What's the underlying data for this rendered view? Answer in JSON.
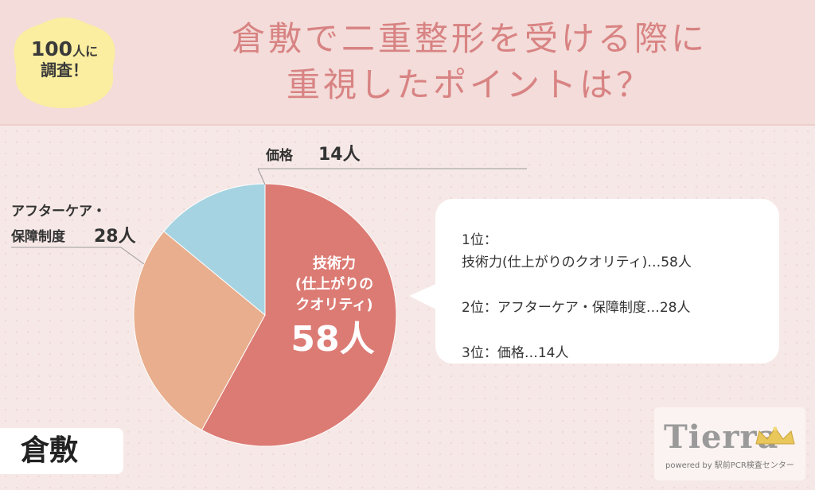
{
  "badge": {
    "line1_num": "100",
    "line1_suffix": "人に",
    "line2": "調査！"
  },
  "title": {
    "line1": "倉敷で二重整形を受ける際に",
    "line2": "重視したポイントは？"
  },
  "chart_data": {
    "type": "pie",
    "unit": "人",
    "slices": [
      {
        "label": "技術力(仕上がりのクオリティ)",
        "value": 58,
        "color": "#dc7b74"
      },
      {
        "label": "アフターケア・保障制度",
        "value": 28,
        "color": "#e8ae8d"
      },
      {
        "label": "価格",
        "value": 14,
        "color": "#a6d3e1"
      }
    ],
    "inner_label": {
      "line1": "技術力",
      "line2": "(仕上がりの",
      "line3": "クオリティ)",
      "value": "58人"
    },
    "outer_labels": {
      "price": {
        "name": "価格",
        "value": "14人"
      },
      "aftercare": {
        "name_line1": "アフターケア・",
        "name_line2": "保障制度",
        "value": "28人"
      }
    }
  },
  "ranking": [
    {
      "rank": "1位：",
      "text": "技術力(仕上がりのクオリティ)…58人"
    },
    {
      "rank": "2位：",
      "text": "アフターケア・保障制度…28人"
    },
    {
      "rank": "3位：",
      "text": "価格…14人"
    }
  ],
  "city": "倉敷",
  "logo": {
    "word": "Tierra",
    "sub": "powered by 駅前PCR検査センター"
  }
}
